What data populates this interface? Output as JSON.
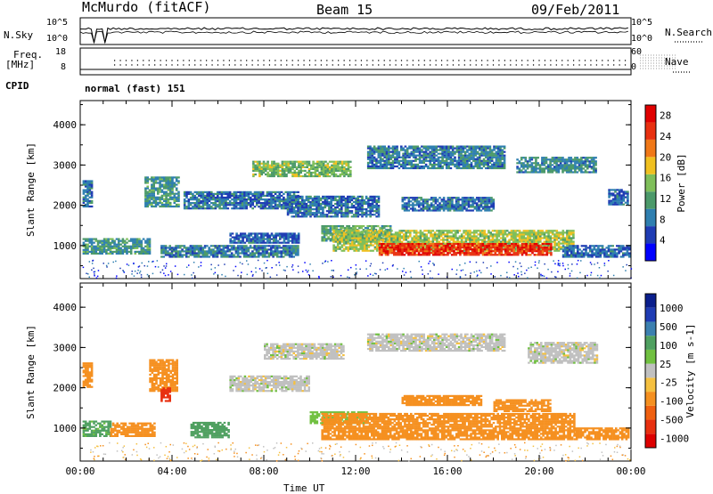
{
  "header": {
    "station": "McMurdo (fitACF)",
    "beam": "Beam 15",
    "date": "09/Feb/2011"
  },
  "status_panels": {
    "nsky_label": "N.Sky",
    "nsky_ticks": [
      "10^5",
      "10^0"
    ],
    "nsearch_label": "N.Search",
    "nsearch_ticks": [
      "10^5",
      "10^0"
    ],
    "freq_label_line1": "Freq.",
    "freq_label_line2": "[MHz]",
    "freq_ticks": [
      "18",
      "8"
    ],
    "nave_label": "Nave",
    "nave_ticks": [
      "60",
      "0"
    ],
    "cpid_label": "CPID",
    "cpid_value": "normal (fast) 151"
  },
  "legend_colors": {
    "power": [
      "#0000ff",
      "#1f3cb4",
      "#2f7fb0",
      "#4c9a6a",
      "#7fbf5a",
      "#f0c020",
      "#f07818",
      "#e83010",
      "#e00000"
    ],
    "velocity": [
      "#0a1e8c",
      "#1f3cb4",
      "#3c80b0",
      "#4fa060",
      "#70c040",
      "#c0c0c0",
      "#f5c040",
      "#f59020",
      "#f06010",
      "#e83010",
      "#dd0000"
    ]
  },
  "chart_data": [
    {
      "type": "heatmap",
      "name": "power",
      "xlabel": "",
      "ylabel": "Slant Range [km]",
      "xlim": [
        0,
        24
      ],
      "ylim": [
        180,
        4600
      ],
      "ytick_labels": [
        "1000",
        "2000",
        "3000",
        "4000"
      ],
      "colorbar_label": "Power [dB]",
      "colorbar_ticks": [
        "4",
        "8",
        "12",
        "16",
        "20",
        "24",
        "28"
      ],
      "colorbar_range": [
        0,
        30
      ],
      "echo_regions": [
        {
          "t": [
            0.1,
            3.0
          ],
          "r": [
            780,
            1150
          ],
          "level": 10
        },
        {
          "t": [
            0.1,
            0.5
          ],
          "r": [
            1950,
            2600
          ],
          "level": 7
        },
        {
          "t": [
            2.8,
            4.3
          ],
          "r": [
            1950,
            2700
          ],
          "level": 10
        },
        {
          "t": [
            3.5,
            9.5
          ],
          "r": [
            700,
            1000
          ],
          "level": 8
        },
        {
          "t": [
            4.5,
            9.5
          ],
          "r": [
            1900,
            2350
          ],
          "level": 7
        },
        {
          "t": [
            6.5,
            9.5
          ],
          "r": [
            1050,
            1300
          ],
          "level": 6
        },
        {
          "t": [
            7.5,
            11.8
          ],
          "r": [
            2700,
            3100
          ],
          "level": 14
        },
        {
          "t": [
            9.0,
            13.0
          ],
          "r": [
            1700,
            2200
          ],
          "level": 7
        },
        {
          "t": [
            10.5,
            13.5
          ],
          "r": [
            1100,
            1500
          ],
          "level": 12
        },
        {
          "t": [
            12.5,
            18.5
          ],
          "r": [
            2900,
            3450
          ],
          "level": 8
        },
        {
          "t": [
            11.0,
            21.5
          ],
          "r": [
            850,
            1350
          ],
          "level": 16
        },
        {
          "t": [
            13.0,
            20.5
          ],
          "r": [
            750,
            1050
          ],
          "level": 27
        },
        {
          "t": [
            14.0,
            18.0
          ],
          "r": [
            1850,
            2200
          ],
          "level": 7
        },
        {
          "t": [
            19.0,
            22.5
          ],
          "r": [
            2800,
            3200
          ],
          "level": 9
        },
        {
          "t": [
            21.0,
            23.9
          ],
          "r": [
            700,
            1000
          ],
          "level": 6
        },
        {
          "t": [
            23.0,
            23.9
          ],
          "r": [
            2000,
            2400
          ],
          "level": 6
        }
      ]
    },
    {
      "type": "heatmap",
      "name": "velocity",
      "xlabel": "Time UT",
      "ylabel": "Slant Range [km]",
      "xlim": [
        0,
        24
      ],
      "ylim": [
        180,
        4600
      ],
      "xtick_labels": [
        "00:00",
        "04:00",
        "08:00",
        "12:00",
        "16:00",
        "20:00",
        "00:00"
      ],
      "ytick_labels": [
        "1000",
        "2000",
        "3000",
        "4000"
      ],
      "colorbar_label": "Velocity [m s-1]",
      "colorbar_ticks": [
        "1000",
        "500",
        "100",
        "25",
        "-25",
        "-100",
        "-500",
        "-1000"
      ],
      "echo_regions": [
        {
          "t": [
            0.1,
            1.3
          ],
          "r": [
            780,
            1150
          ],
          "v": 120
        },
        {
          "t": [
            0.1,
            0.5
          ],
          "r": [
            2000,
            2600
          ],
          "v": -150
        },
        {
          "t": [
            3.0,
            4.2
          ],
          "r": [
            1900,
            2700
          ],
          "v": -200
        },
        {
          "t": [
            3.5,
            3.9
          ],
          "r": [
            1650,
            2000
          ],
          "v": -700
        },
        {
          "t": [
            1.3,
            3.2
          ],
          "r": [
            780,
            1100
          ],
          "v": -150
        },
        {
          "t": [
            4.8,
            6.5
          ],
          "r": [
            750,
            1150
          ],
          "v": 200
        },
        {
          "t": [
            6.5,
            10.0
          ],
          "r": [
            1900,
            2300
          ],
          "v": 0
        },
        {
          "t": [
            8.0,
            11.5
          ],
          "r": [
            2700,
            3100
          ],
          "v": 0
        },
        {
          "t": [
            10.0,
            12.5
          ],
          "r": [
            1100,
            1400
          ],
          "v": 60
        },
        {
          "t": [
            10.5,
            21.5
          ],
          "r": [
            700,
            1350
          ],
          "v": -150
        },
        {
          "t": [
            14.0,
            17.5
          ],
          "r": [
            1550,
            1800
          ],
          "v": -150
        },
        {
          "t": [
            12.5,
            18.5
          ],
          "r": [
            2900,
            3350
          ],
          "v": 0
        },
        {
          "t": [
            18.0,
            20.5
          ],
          "r": [
            1400,
            1700
          ],
          "v": -150
        },
        {
          "t": [
            19.5,
            22.5
          ],
          "r": [
            2600,
            3100
          ],
          "v": 0
        },
        {
          "t": [
            21.5,
            23.9
          ],
          "r": [
            700,
            1000
          ],
          "v": -150
        }
      ]
    }
  ]
}
